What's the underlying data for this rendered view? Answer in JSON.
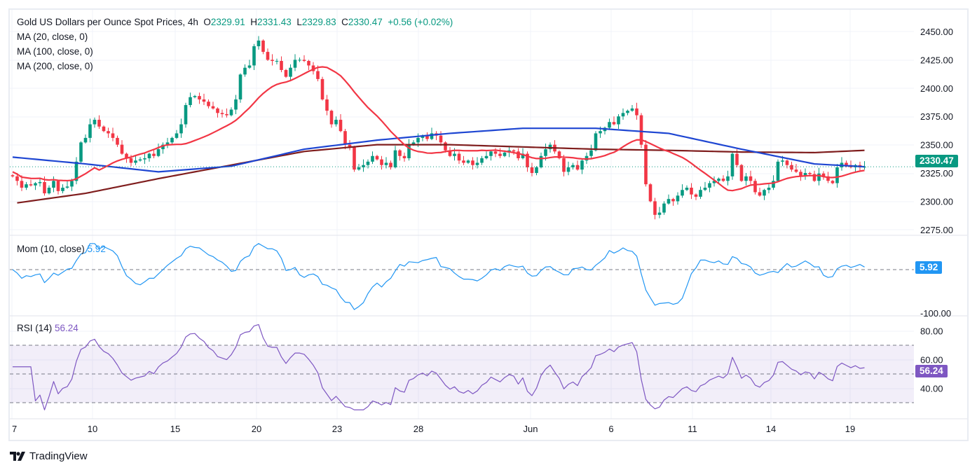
{
  "header": {
    "title": "Gold US Dollars per Ounce Spot Prices, 4h",
    "open_label": "O",
    "open": "2329.91",
    "high_label": "H",
    "high": "2331.43",
    "low_label": "L",
    "low": "2329.83",
    "close_label": "C",
    "close": "2330.47",
    "change": "+0.56 (+0.02%)"
  },
  "indicators": {
    "ma20": "MA (20, close, 0)",
    "ma100": "MA (100, close, 0)",
    "ma200": "MA (200, close, 0)",
    "mom": "Mom (10, close)",
    "mom_value": "5.92",
    "rsi": "RSI (14)",
    "rsi_value": "56.24"
  },
  "price_tag": "2330.47",
  "brand": "TradingView",
  "colors": {
    "up": "#089981",
    "down": "#f23645",
    "ma20": "#f23645",
    "ma100": "#1e46d2",
    "ma200": "#7f1d1d",
    "mom": "#2196f3",
    "rsi": "#7e57c2"
  },
  "chart_data": [
    {
      "type": "candlestick",
      "title": "Gold US Dollars per Ounce Spot Prices, 4h",
      "x_tick_labels": [
        "7",
        "10",
        "15",
        "20",
        "23",
        "28",
        "Jun",
        "6",
        "11",
        "14",
        "19"
      ],
      "y_tick_labels": [
        "2450.00",
        "2425.00",
        "2400.00",
        "2375.00",
        "2350.00",
        "2325.00",
        "2300.00",
        "2275.00"
      ],
      "ylim": [
        2270,
        2455
      ],
      "grid": true,
      "closes": [
        2322,
        2318,
        2312,
        2315,
        2314,
        2316,
        2317,
        2307,
        2312,
        2318,
        2309,
        2312,
        2313,
        2318,
        2335,
        2352,
        2356,
        2368,
        2372,
        2366,
        2362,
        2360,
        2356,
        2350,
        2342,
        2338,
        2334,
        2336,
        2337,
        2338,
        2342,
        2340,
        2346,
        2350,
        2352,
        2356,
        2360,
        2368,
        2385,
        2392,
        2393,
        2390,
        2388,
        2384,
        2382,
        2378,
        2377,
        2376,
        2381,
        2390,
        2412,
        2418,
        2420,
        2437,
        2442,
        2432,
        2425,
        2424,
        2424,
        2416,
        2410,
        2418,
        2425,
        2425,
        2424,
        2420,
        2415,
        2408,
        2390,
        2380,
        2368,
        2372,
        2362,
        2350,
        2348,
        2328,
        2330,
        2332,
        2335,
        2340,
        2337,
        2332,
        2334,
        2330,
        2345,
        2340,
        2338,
        2350,
        2352,
        2356,
        2358,
        2355,
        2360,
        2358,
        2352,
        2345,
        2340,
        2342,
        2336,
        2334,
        2336,
        2332,
        2334,
        2338,
        2340,
        2344,
        2342,
        2340,
        2343,
        2345,
        2344,
        2338,
        2342,
        2330,
        2325,
        2330,
        2340,
        2346,
        2350,
        2344,
        2338,
        2326,
        2330,
        2332,
        2328,
        2336,
        2340,
        2345,
        2360,
        2362,
        2365,
        2370,
        2368,
        2375,
        2378,
        2380,
        2382,
        2376,
        2350,
        2315,
        2300,
        2288,
        2290,
        2298,
        2302,
        2300,
        2305,
        2310,
        2312,
        2306,
        2304,
        2310,
        2312,
        2316,
        2318,
        2320,
        2318,
        2322,
        2342,
        2332,
        2318,
        2322,
        2318,
        2308,
        2305,
        2310,
        2312,
        2318,
        2335,
        2336,
        2332,
        2328,
        2326,
        2322,
        2325,
        2324,
        2318,
        2324.55,
        2322,
        2318,
        2316,
        2330,
        2334,
        2332,
        2330,
        2332,
        2329.91,
        2330.47
      ],
      "series": [
        {
          "name": "MA (100, close, 0)",
          "sample_index": [
            0,
            16,
            32,
            48,
            64,
            80,
            96,
            112,
            128,
            144,
            160,
            176,
            187
          ],
          "values": [
            2339,
            2333,
            2326,
            2331,
            2346,
            2354,
            2360,
            2364.5,
            2364.5,
            2360,
            2346,
            2333,
            2330.5
          ]
        },
        {
          "name": "MA (200, close, 0)",
          "sample_index": [
            0,
            16,
            32,
            48,
            64,
            80,
            96,
            112,
            128,
            144,
            160,
            176,
            187
          ],
          "values": [
            2298,
            2307,
            2320,
            2332,
            2344,
            2350,
            2350,
            2348,
            2346,
            2345,
            2343.5,
            2343,
            2345
          ]
        }
      ],
      "last_price": 2330.47
    },
    {
      "type": "line",
      "title": "Mom (10, close)",
      "last_value": 5.92,
      "y_tick_labels": [
        "-100.00"
      ],
      "zero_line": true
    },
    {
      "type": "line",
      "title": "RSI (14)",
      "last_value": 56.24,
      "y_tick_labels": [
        "80.00",
        "60.00",
        "40.00"
      ],
      "band": [
        30,
        70
      ],
      "mid_line": 50
    }
  ]
}
